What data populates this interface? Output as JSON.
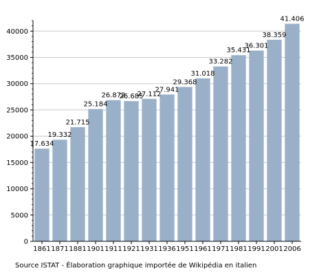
{
  "chart_data": {
    "type": "bar",
    "categories": [
      "1861",
      "1871",
      "1881",
      "1901",
      "1911",
      "1921",
      "1931",
      "1936",
      "1951",
      "1961",
      "1971",
      "1981",
      "1991",
      "2001",
      "2006"
    ],
    "values": [
      17634,
      19332,
      21715,
      25184,
      26872,
      26685,
      27112,
      27941,
      29368,
      31018,
      33282,
      35431,
      36301,
      38359,
      41406
    ],
    "value_labels": [
      "17.634",
      "19.332",
      "21.715",
      "25.184",
      "26.872",
      "26.685",
      "27.112",
      "27.941",
      "29.368",
      "31.018",
      "33.282",
      "35.431",
      "36.301",
      "38.359",
      "41.406"
    ],
    "ylim": [
      0,
      42000
    ],
    "y_ticks": [
      "0",
      "5000",
      "10000",
      "15000",
      "20000",
      "25000",
      "30000",
      "35000",
      "40000"
    ],
    "grid": true,
    "bar_color": "#9ab0c8"
  },
  "source_note": "Source ISTAT - Élaboration graphique importée de Wikipédia en italien"
}
